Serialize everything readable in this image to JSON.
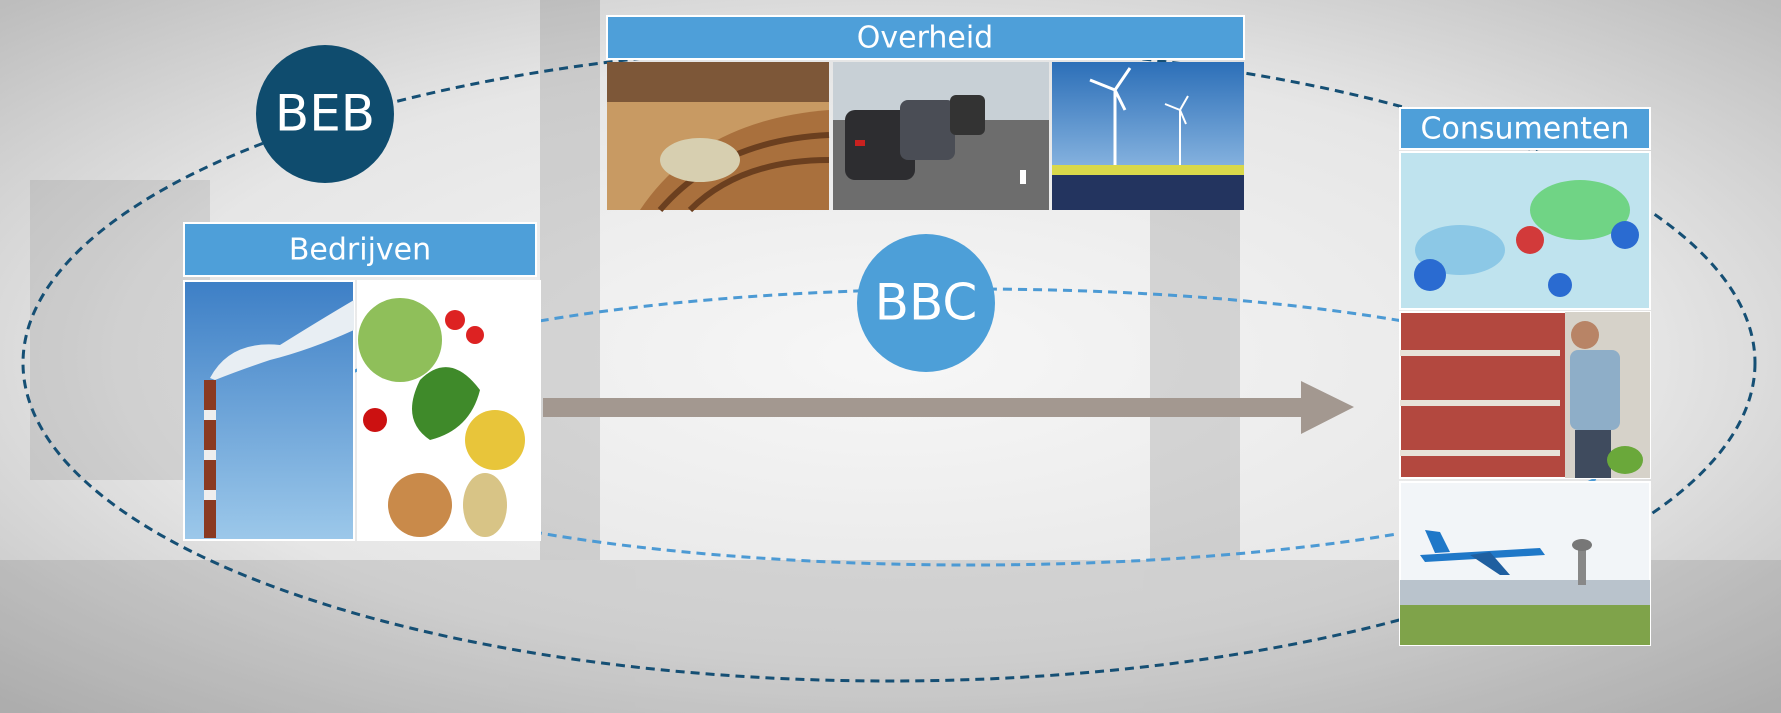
{
  "groups": [
    {
      "label": "Overheid"
    },
    {
      "label": "Bedrijven"
    },
    {
      "label": "Consumenten"
    }
  ],
  "circles": [
    {
      "label": "BEB"
    },
    {
      "label": "BBC"
    }
  ]
}
